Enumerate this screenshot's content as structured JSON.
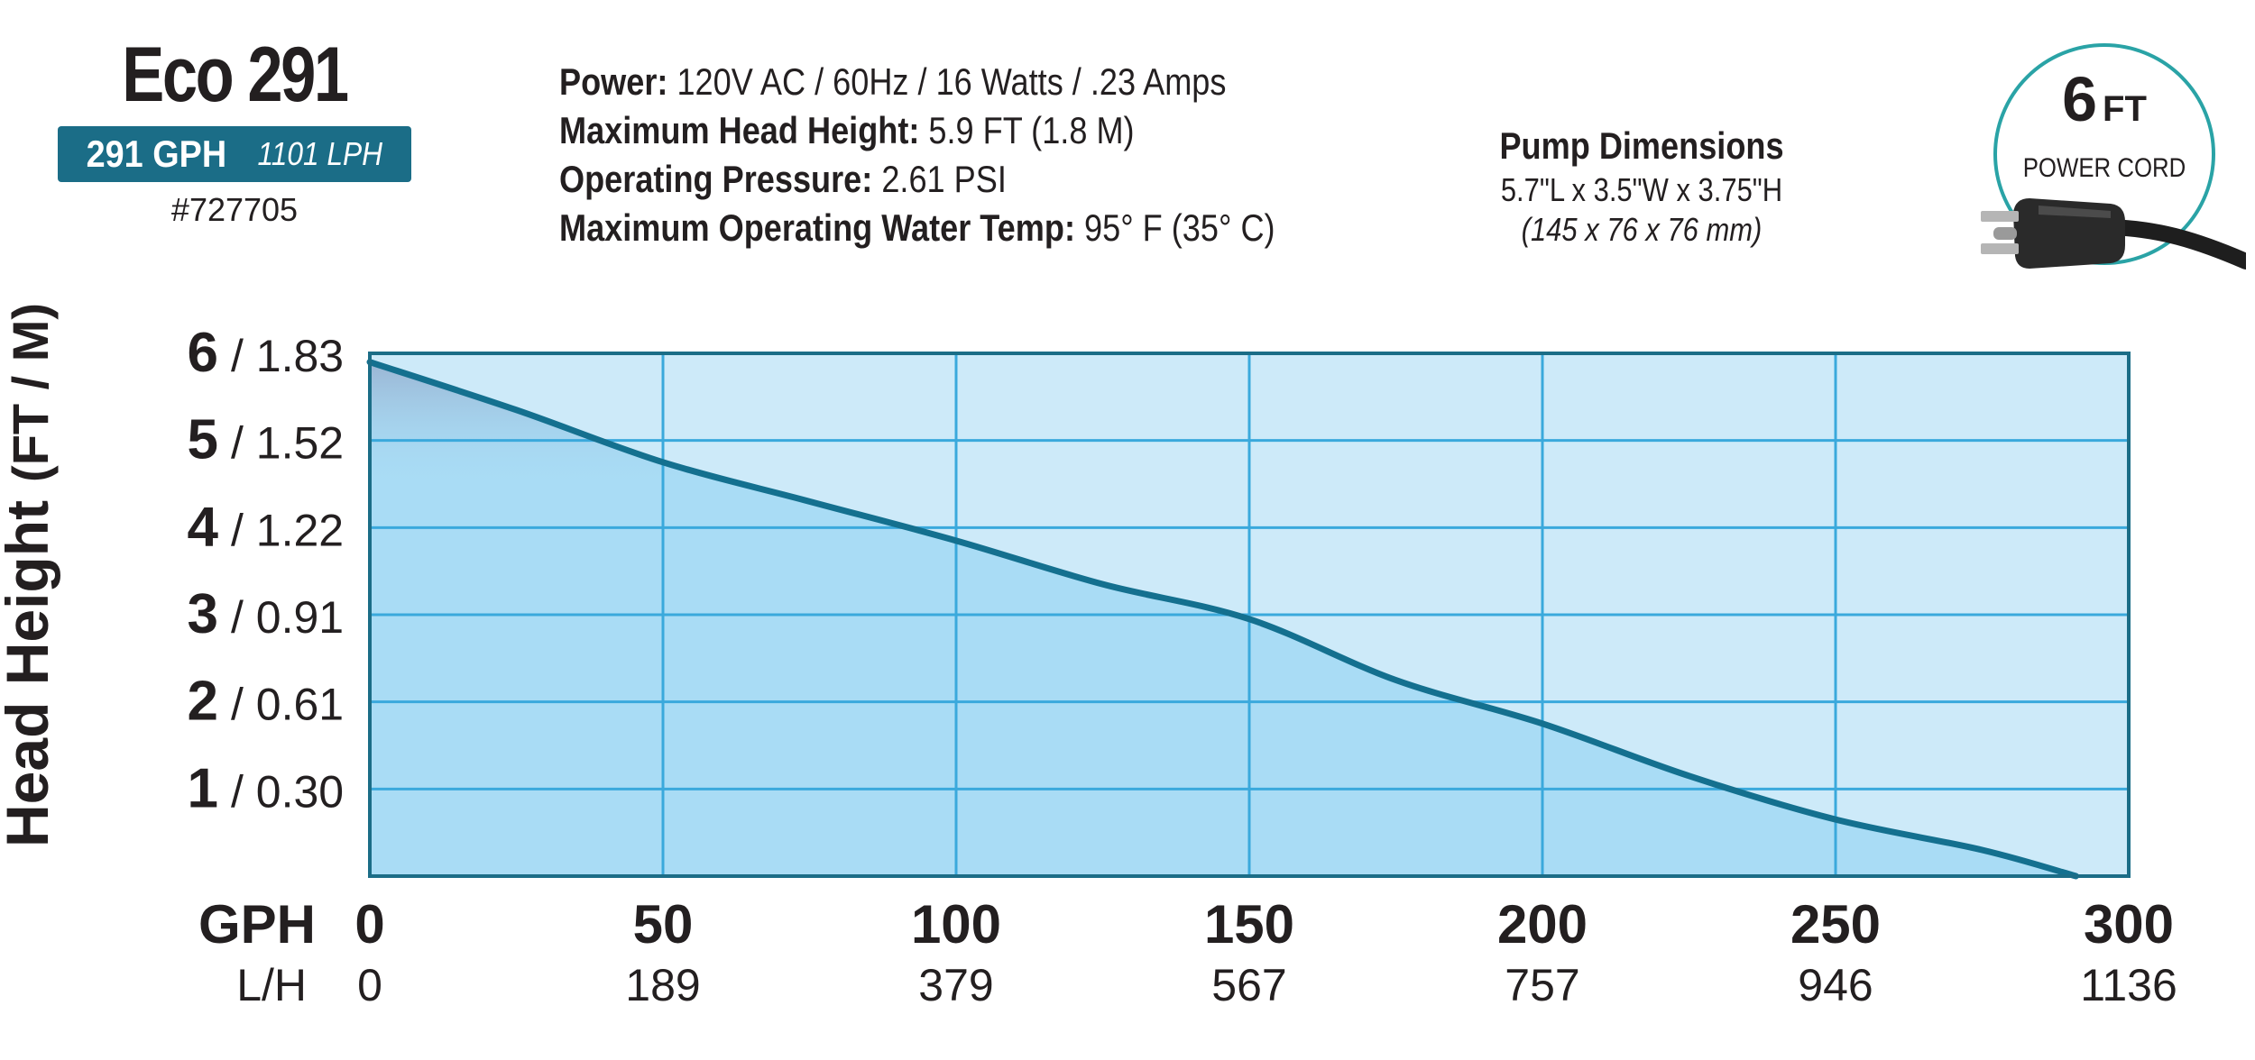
{
  "product": {
    "name": "Eco 291",
    "flow_gph": "291 GPH",
    "flow_lph": "1101 LPH",
    "part_number": "#727705"
  },
  "specs": [
    {
      "label": "Power:",
      "value": "120V AC / 60Hz / 16 Watts / .23 Amps"
    },
    {
      "label": "Maximum Head Height:",
      "value": "5.9 FT (1.8 M)"
    },
    {
      "label": "Operating Pressure:",
      "value": "2.61 PSI"
    },
    {
      "label": "Maximum Operating Water Temp:",
      "value": "95° F (35° C)"
    }
  ],
  "dimensions": {
    "title": "Pump Dimensions",
    "imperial": "5.7\"L x 3.5\"W x 3.75\"H",
    "metric": "(145 x 76 x 76 mm)"
  },
  "power_cord": {
    "length_number": "6",
    "length_unit": "FT",
    "label": "POWER CORD",
    "icon": "plug-icon"
  },
  "colors": {
    "brand": "#1b6d87",
    "accent": "#2aa3a6",
    "plot_fill": "#cdeaf9",
    "under_curve": "#a9dcf5",
    "grid": "#3aa9dc",
    "curve": "#14708f",
    "frame": "#1b6d87"
  },
  "chart_data": {
    "type": "area",
    "ylabel": "Head Height",
    "ylabel_units": "(FT / M)",
    "x_unit_primary": "GPH",
    "x_unit_secondary": "L/H",
    "xlim": [
      0,
      300
    ],
    "ylim": [
      0,
      6
    ],
    "x_ticks": [
      {
        "gph": "0",
        "lph": "0"
      },
      {
        "gph": "50",
        "lph": "189"
      },
      {
        "gph": "100",
        "lph": "379"
      },
      {
        "gph": "150",
        "lph": "567"
      },
      {
        "gph": "200",
        "lph": "757"
      },
      {
        "gph": "250",
        "lph": "946"
      },
      {
        "gph": "300",
        "lph": "1136"
      }
    ],
    "y_ticks": [
      {
        "ft": "6",
        "m": "/ 1.83"
      },
      {
        "ft": "5",
        "m": "/ 1.52"
      },
      {
        "ft": "4",
        "m": "/ 1.22"
      },
      {
        "ft": "3",
        "m": "/ 0.91"
      },
      {
        "ft": "2",
        "m": "/ 0.61"
      },
      {
        "ft": "1",
        "m": "/ 0.30"
      }
    ],
    "grid": true,
    "series": [
      {
        "x": [
          0,
          25,
          50,
          75,
          100,
          125,
          150,
          175,
          200,
          225,
          250,
          275,
          291
        ],
        "y": [
          5.9,
          5.35,
          4.75,
          4.3,
          3.85,
          3.35,
          2.95,
          2.25,
          1.75,
          1.15,
          0.65,
          0.3,
          0.0
        ]
      }
    ]
  }
}
